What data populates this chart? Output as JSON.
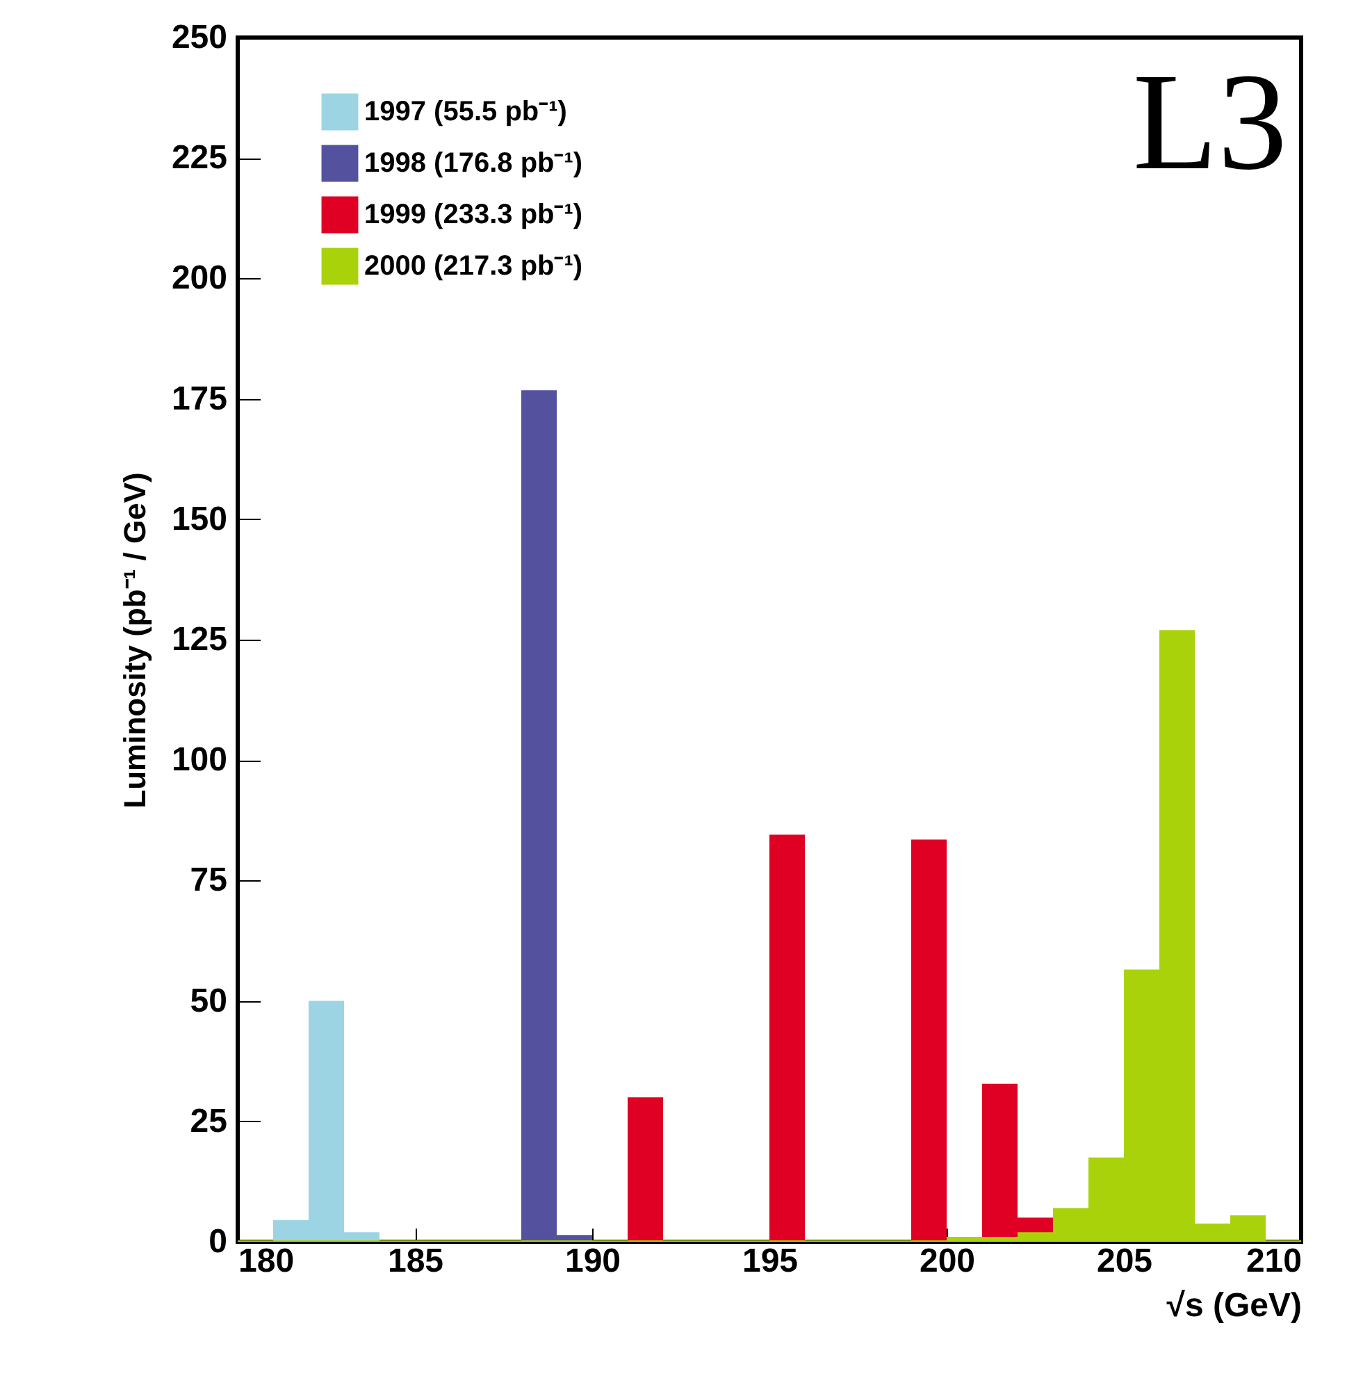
{
  "chart_data": {
    "type": "histogram",
    "xlabel": "√s (GeV)",
    "ylabel": "Luminosity (pb⁻¹ / GeV)",
    "annotations": [
      "L3"
    ],
    "bins": [
      180,
      181,
      182,
      183,
      184,
      185,
      186,
      187,
      188,
      189,
      190,
      191,
      192,
      193,
      194,
      195,
      196,
      197,
      198,
      199,
      200,
      201,
      202,
      203,
      204,
      205,
      206,
      207,
      208,
      209,
      210
    ],
    "series": [
      {
        "name": "1997 (55.5 pb⁻¹)",
        "color": "#9dd4e4",
        "values": [
          null,
          4.5,
          50,
          2,
          null,
          null,
          null,
          null,
          null,
          null,
          null,
          null,
          null,
          null,
          null,
          null,
          null,
          null,
          null,
          null,
          null,
          null,
          null,
          null,
          null,
          null,
          null,
          null,
          null,
          null
        ]
      },
      {
        "name": "1998 (176.8 pb⁻¹)",
        "color": "#54529e",
        "values": [
          null,
          null,
          null,
          null,
          null,
          null,
          null,
          null,
          176.8,
          1.4,
          null,
          null,
          null,
          null,
          null,
          null,
          null,
          null,
          null,
          null,
          null,
          null,
          null,
          null,
          null,
          null,
          null,
          null,
          null,
          null
        ]
      },
      {
        "name": "1999 (233.3 pb⁻¹)",
        "color": "#e00024",
        "values": [
          null,
          null,
          null,
          null,
          null,
          null,
          null,
          null,
          null,
          null,
          null,
          30,
          null,
          null,
          null,
          84.5,
          null,
          null,
          null,
          83.5,
          null,
          32.8,
          5,
          null,
          null,
          null,
          null,
          null,
          null,
          null
        ]
      },
      {
        "name": "2000 (217.3 pb⁻¹)",
        "color": "#aad20a",
        "values": [
          0.3,
          0.3,
          0.3,
          0.3,
          0.3,
          0.3,
          0.3,
          0.3,
          0.3,
          0.3,
          0.3,
          0.3,
          0.3,
          0.3,
          0.3,
          0.3,
          0.3,
          0.3,
          0.3,
          0.3,
          1,
          1,
          2,
          7,
          17.5,
          56.5,
          127,
          3.8,
          5.5,
          0.3
        ]
      }
    ],
    "xlim": [
      180,
      210
    ],
    "xticks": [
      180,
      185,
      190,
      195,
      200,
      205,
      210
    ],
    "ylim": [
      0,
      250
    ],
    "yticks": [
      0,
      25,
      50,
      75,
      100,
      125,
      150,
      175,
      200,
      225,
      250
    ],
    "grid": false,
    "legend": "top left"
  }
}
